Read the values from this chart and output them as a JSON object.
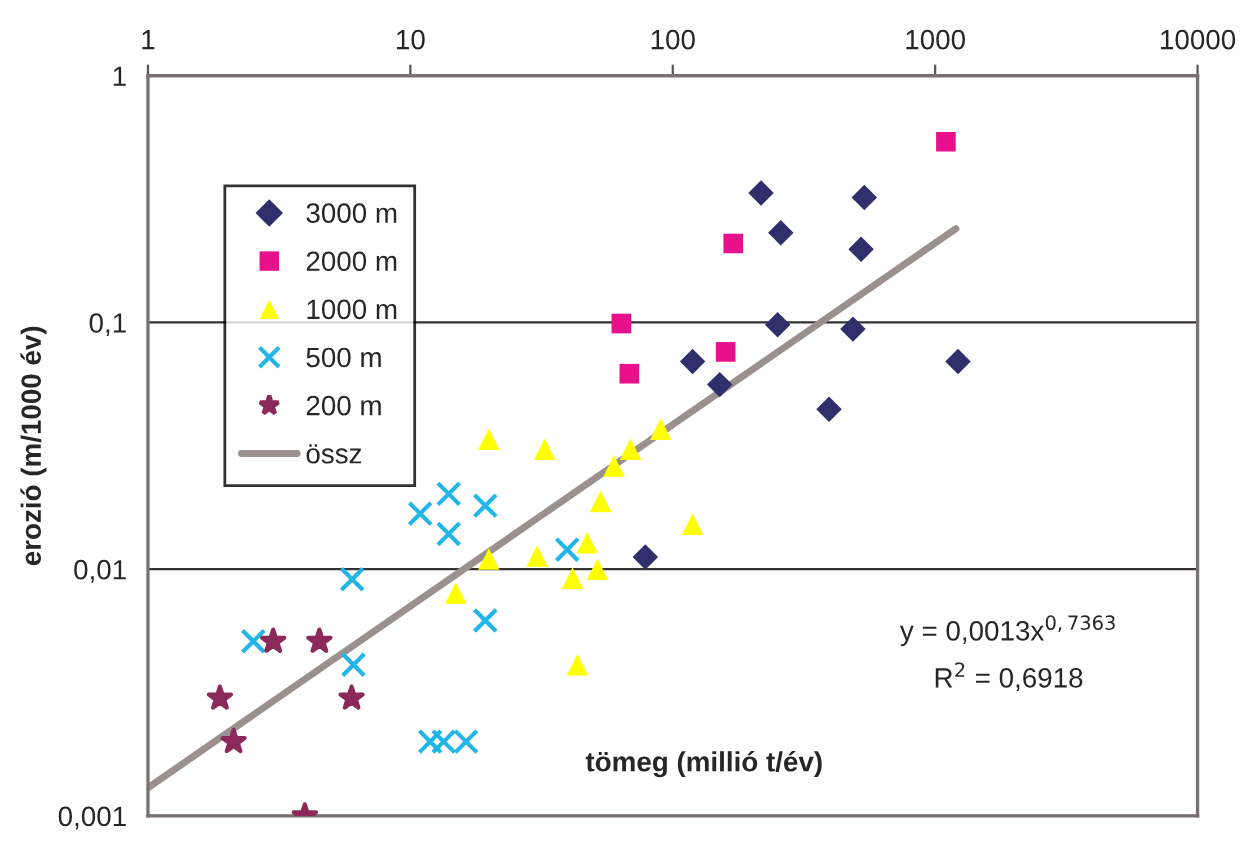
{
  "chart_data": {
    "type": "scatter",
    "xlabel": "tömeg (millió t/év)",
    "ylabel": "erozió (m/1000 év)",
    "log": "xy",
    "xlim": [
      1,
      10000
    ],
    "xticks": [
      1,
      10,
      100,
      1000,
      10000
    ],
    "ylim": [
      0.001,
      1
    ],
    "yticks": [
      {
        "value": 0.001,
        "label": "0,001"
      },
      {
        "value": 0.01,
        "label": "0,01"
      },
      {
        "value": 0.1,
        "label": "0,1"
      },
      1
    ],
    "grid": "y",
    "legend": "top left",
    "series": [
      {
        "name": "3000 m",
        "color": "#2e2f6b",
        "marker": "diamond",
        "x": [
          217,
          537,
          258,
          522,
          251,
          486,
          119,
          151,
          394,
          1222,
          78.6
        ],
        "values": [
          0.335,
          0.321,
          0.231,
          0.198,
          0.098,
          0.094,
          0.0695,
          0.056,
          0.0445,
          0.0695,
          0.0112
        ]
      },
      {
        "name": "2000 m",
        "color": "#e8118c",
        "marker": "square",
        "x": [
          1099,
          170,
          63.7,
          68.3,
          159
        ],
        "values": [
          0.54,
          0.209,
          0.099,
          0.062,
          0.076
        ]
      },
      {
        "name": "1000 m",
        "color": "#ffff00",
        "marker": "triangle",
        "x": [
          19.9,
          32.5,
          90,
          69,
          59.7,
          53.1,
          119,
          47.2,
          51.6,
          41.5,
          30.4,
          19.9,
          14.9,
          43.3
        ],
        "values": [
          0.0336,
          0.0306,
          0.0369,
          0.0306,
          0.0262,
          0.0188,
          0.0152,
          0.0128,
          0.01,
          0.0092,
          0.0113,
          0.011,
          0.008,
          0.0041
        ]
      },
      {
        "name": "500 m",
        "color": "#21b5e8",
        "marker": "cross",
        "x": [
          10.9,
          14.0,
          14.0,
          19.3,
          6.0,
          19.3,
          2.52,
          6.07,
          11.9,
          13.4,
          16.3,
          39.6
        ],
        "values": [
          0.0168,
          0.0202,
          0.0139,
          0.0181,
          0.0091,
          0.0062,
          0.0051,
          0.0041,
          0.002,
          0.002,
          0.002,
          0.012
        ]
      },
      {
        "name": "200 m",
        "color": "#8b2a5a",
        "marker": "star",
        "x": [
          3.0,
          4.5,
          1.88,
          5.97,
          2.12,
          3.96
        ],
        "values": [
          0.0051,
          0.0051,
          0.003,
          0.003,
          0.002,
          0.001
        ]
      },
      {
        "name": "össz",
        "type": "line",
        "color": "#9a918e",
        "x": [
          1,
          30,
          1200
        ],
        "values": [
          0.0013,
          0.0159,
          0.24
        ]
      }
    ],
    "annotations": [
      "y = 0,0013x$^{0,7363}$",
      "R$^{2}$ = 0,6918"
    ]
  }
}
